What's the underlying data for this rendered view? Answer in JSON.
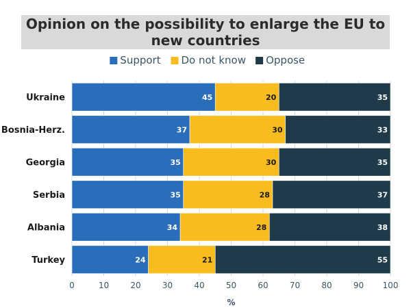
{
  "chart_data": {
    "type": "bar",
    "orientation": "horizontal",
    "stacked": true,
    "title": "Opinion on the possibility to enlarge the EU to new countries",
    "xlabel": "%",
    "ylabel": "",
    "xlim": [
      0,
      100
    ],
    "xticks": [
      0,
      10,
      20,
      30,
      40,
      50,
      60,
      70,
      80,
      90,
      100
    ],
    "categories": [
      "Ukraine",
      "Bosnia-Herz.",
      "Georgia",
      "Serbia",
      "Albania",
      "Turkey"
    ],
    "series": [
      {
        "name": "Support",
        "color": "#2a6ebb",
        "values": [
          45,
          37,
          35,
          35,
          34,
          24
        ]
      },
      {
        "name": "Do not know",
        "color": "#f8bc1e",
        "values": [
          20,
          30,
          30,
          28,
          28,
          21
        ]
      },
      {
        "name": "Oppose",
        "color": "#1f3a48",
        "values": [
          35,
          33,
          35,
          37,
          38,
          55
        ]
      }
    ],
    "legend_position": "top",
    "grid": true
  }
}
